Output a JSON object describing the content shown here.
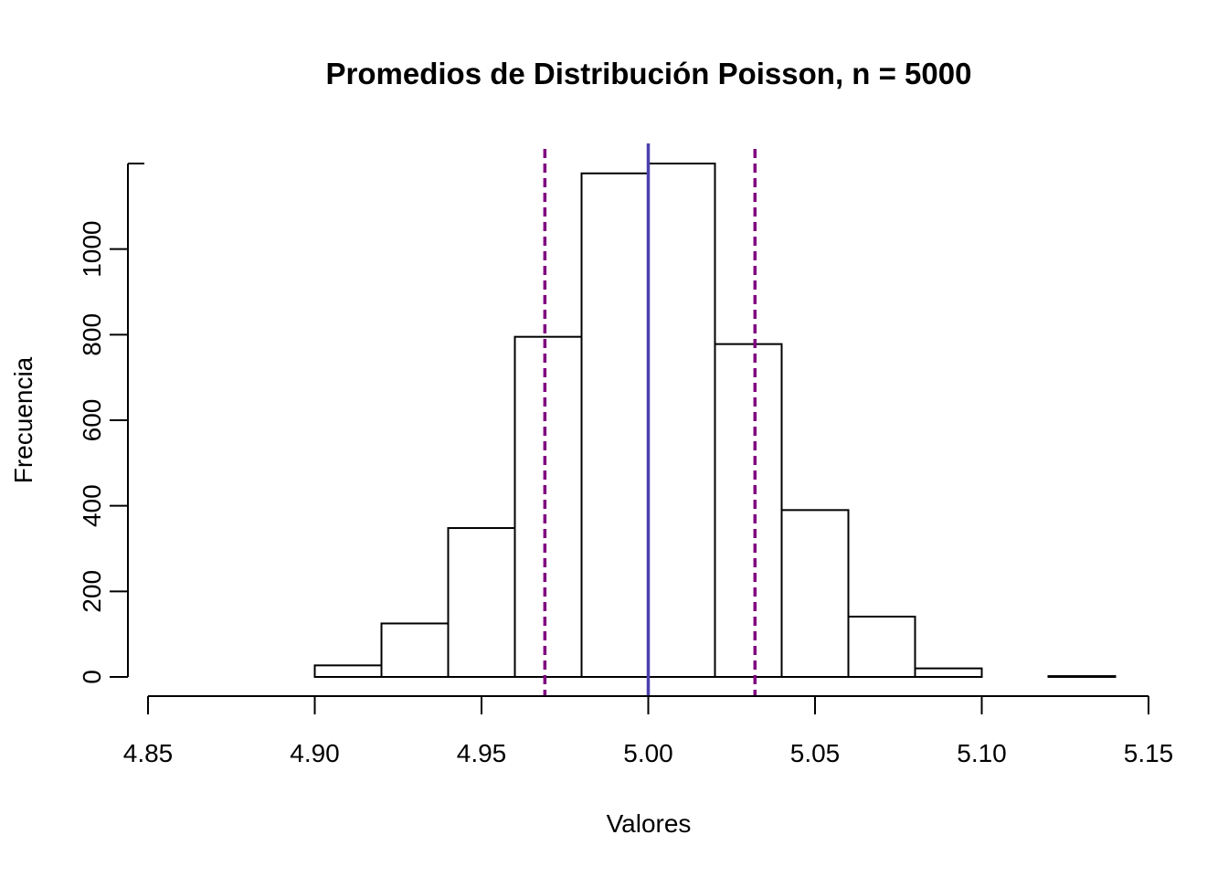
{
  "chart_data": {
    "type": "bar",
    "subtype": "histogram",
    "title": "Promedios de Distribución Poisson, n = 5000",
    "xlabel": "Valores",
    "ylabel": "Frecuencia",
    "xlim": [
      4.85,
      5.15
    ],
    "ylim": [
      0,
      1200
    ],
    "x_ticks": [
      "4.85",
      "4.90",
      "4.95",
      "5.00",
      "5.05",
      "5.10",
      "5.15"
    ],
    "y_ticks": [
      "0",
      "200",
      "400",
      "600",
      "800",
      "1000"
    ],
    "bins": [
      {
        "start": 4.86,
        "end": 4.88,
        "count": 0
      },
      {
        "start": 4.88,
        "end": 4.9,
        "count": 0
      },
      {
        "start": 4.9,
        "end": 4.92,
        "count": 27
      },
      {
        "start": 4.92,
        "end": 4.94,
        "count": 125
      },
      {
        "start": 4.94,
        "end": 4.96,
        "count": 348
      },
      {
        "start": 4.96,
        "end": 4.98,
        "count": 795
      },
      {
        "start": 4.98,
        "end": 5.0,
        "count": 1177
      },
      {
        "start": 5.0,
        "end": 5.02,
        "count": 1200
      },
      {
        "start": 5.02,
        "end": 5.04,
        "count": 778
      },
      {
        "start": 5.04,
        "end": 5.06,
        "count": 390
      },
      {
        "start": 5.06,
        "end": 5.08,
        "count": 141
      },
      {
        "start": 5.08,
        "end": 5.1,
        "count": 20
      },
      {
        "start": 5.1,
        "end": 5.12,
        "count": 0
      },
      {
        "start": 5.12,
        "end": 5.14,
        "count": 2
      }
    ],
    "vlines": [
      {
        "x": 5.0,
        "style": "solid",
        "color": "#4b3fb0"
      },
      {
        "x": 4.969,
        "style": "dashed",
        "color": "#800080"
      },
      {
        "x": 5.032,
        "style": "dashed",
        "color": "#800080"
      }
    ],
    "bar_fill": "#ffffff",
    "bar_stroke": "#000000",
    "grid": false
  }
}
